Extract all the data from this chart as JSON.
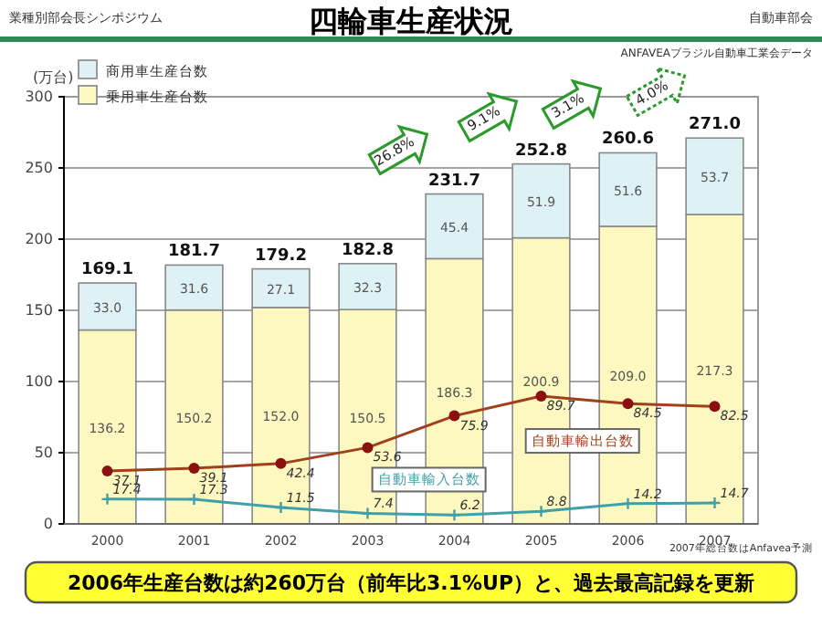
{
  "chart_data": {
    "type": "bar",
    "title": "四輪車生産状況",
    "ylabel": "(万台)",
    "stacked": true,
    "categories": [
      "2000",
      "2001",
      "2002",
      "2003",
      "2004",
      "2005",
      "2006",
      "2007"
    ],
    "series": [
      {
        "name": "乗用車生産台数",
        "color": "#fcf8c0",
        "values": [
          136.2,
          150.2,
          152.0,
          150.5,
          186.3,
          200.9,
          209.0,
          217.3
        ],
        "value_labels": [
          "136.2",
          "150.2",
          "152.0",
          "150.5",
          "186.3",
          "200.9",
          "209.0",
          "217.3"
        ]
      },
      {
        "name": "商用車生産台数",
        "color": "#def2f6",
        "values": [
          33.0,
          31.6,
          27.1,
          32.3,
          45.4,
          51.9,
          51.6,
          53.7
        ],
        "value_labels": [
          "33.0",
          "31.6",
          "27.1",
          "32.3",
          "45.4",
          "51.9",
          "51.6",
          "53.7"
        ]
      },
      {
        "name": "自動車輸出台数",
        "type": "line",
        "color": "#a0401a",
        "marker": "circle",
        "values": [
          37.1,
          39.1,
          42.4,
          53.6,
          75.9,
          89.7,
          84.5,
          82.5
        ],
        "value_labels": [
          "37.1",
          "39.1",
          "42.4",
          "53.6",
          "75.9",
          "89.7",
          "84.5",
          "82.5"
        ]
      },
      {
        "name": "自動車輸入台数",
        "type": "line",
        "color": "#40a0a8",
        "marker": "cross",
        "values": [
          17.4,
          17.3,
          11.5,
          7.4,
          6.2,
          8.8,
          14.2,
          14.7
        ],
        "value_labels": [
          "17.4",
          "17.3",
          "11.5",
          "7.4",
          "6.2",
          "8.8",
          "14.2",
          "14.7"
        ]
      }
    ],
    "totals": [
      "169.1",
      "181.7",
      "179.2",
      "182.8",
      "231.7",
      "252.8",
      "260.6",
      "271.0"
    ],
    "ylim": [
      0,
      300
    ],
    "yticks": [
      0,
      50,
      100,
      150,
      200,
      250,
      300
    ],
    "grid": "y",
    "legend": "top left",
    "annotations": [
      "26.8%",
      "9.1%",
      "3.1%",
      "4.0%",
      "業種別部会長シンポジウム",
      "自動車部会",
      "ANFAVEAブラジル自動車工業会データ",
      "2007年総台数はAnfavea予測",
      "2006年生産台数は約260万台（前年比3.1%UP）と、過去最高記録を更新"
    ]
  }
}
